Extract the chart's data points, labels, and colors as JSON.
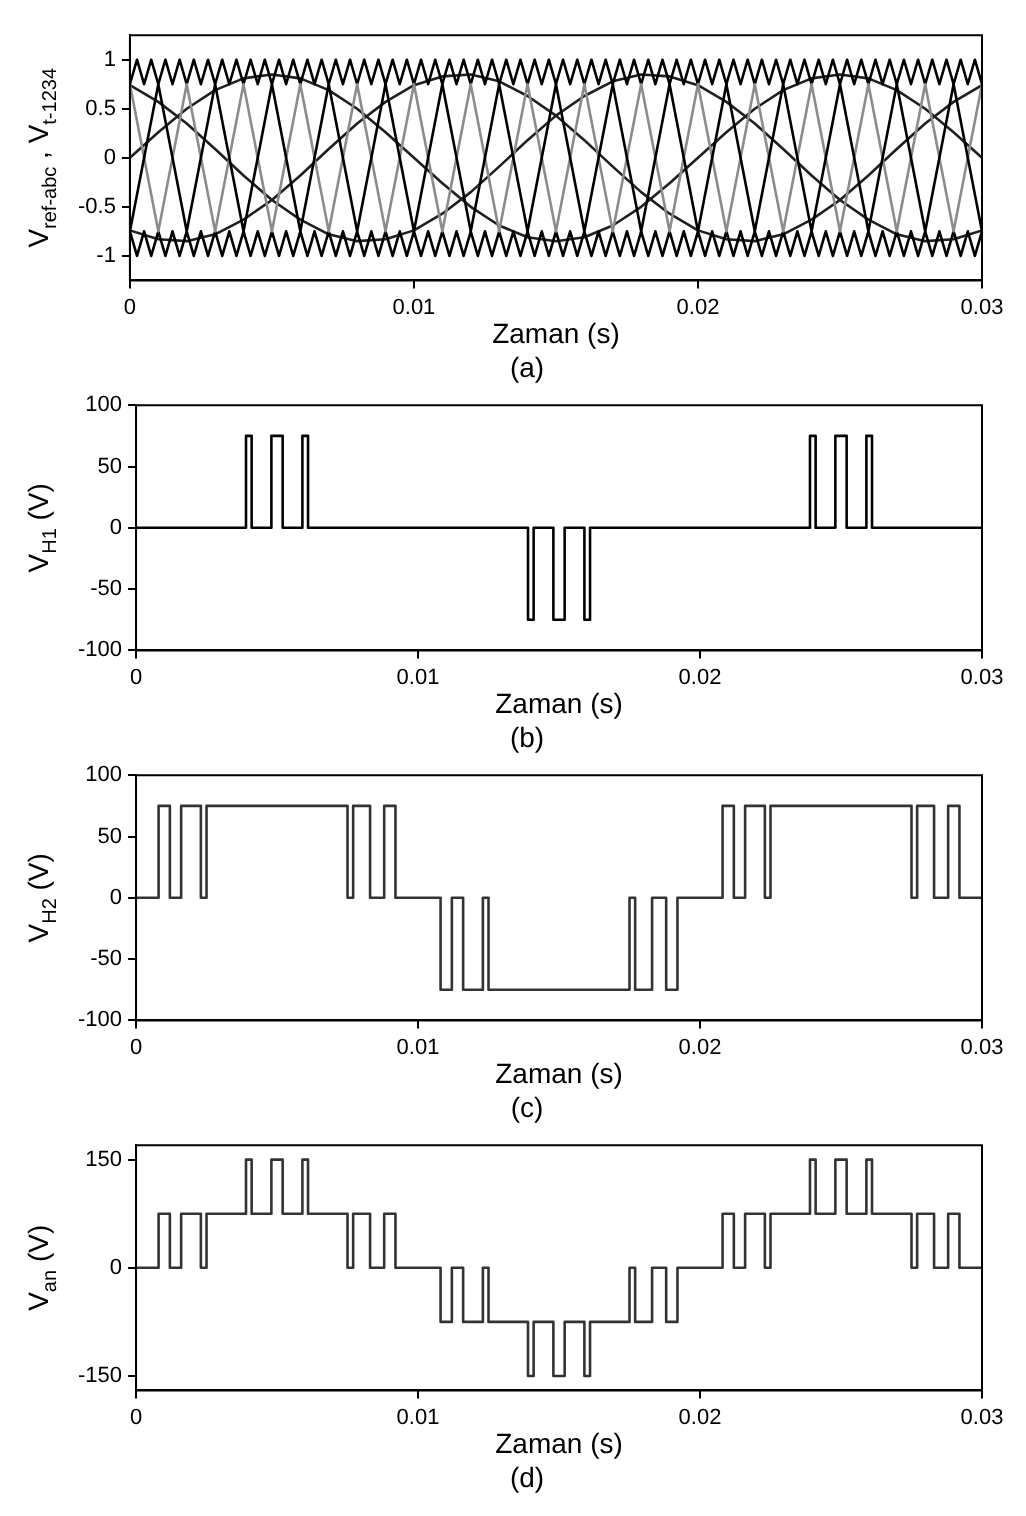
{
  "chart_data": [
    {
      "type": "line",
      "title": "(a)",
      "xlabel": "Zaman (s)",
      "ylabel": "V$_{ref-abc}$ , V$_{t-1234}$",
      "xlim": [
        0,
        0.03
      ],
      "xticks": [
        0,
        0.01,
        0.02,
        0.03
      ],
      "ylim": [
        -1.25,
        1.25
      ],
      "yticks": [
        -1,
        -0.5,
        0,
        0.5,
        1
      ],
      "x": [
        0,
        0.001,
        0.002,
        0.003,
        0.004,
        0.005,
        0.006,
        0.007,
        0.008,
        0.009,
        0.01,
        0.011,
        0.012,
        0.013,
        0.014,
        0.015,
        0.016,
        0.017,
        0.018,
        0.019,
        0.02,
        0.021,
        0.022,
        0.023,
        0.024,
        0.025,
        0.026,
        0.027,
        0.028,
        0.029,
        0.03
      ],
      "series": [
        {
          "color": "#000000",
          "values": [
            -0.75,
            0.75,
            -0.75,
            0.75,
            -0.75,
            0.75,
            -0.75,
            0.75,
            -0.75,
            0.75,
            -0.75,
            0.75,
            -0.75,
            0.75,
            -0.75,
            0.75,
            -0.75,
            0.75,
            -0.75,
            0.75,
            -0.75,
            0.75,
            -0.75,
            0.75,
            -0.75,
            0.75,
            -0.75,
            0.75,
            -0.75,
            0.75,
            -0.75
          ]
        },
        {
          "color": "#8c8c8c",
          "values": [
            0.75,
            -0.75,
            0.75,
            -0.75,
            0.75,
            -0.75,
            0.75,
            -0.75,
            0.75,
            -0.75,
            0.75,
            -0.75,
            0.75,
            -0.75,
            0.75,
            -0.75,
            0.75,
            -0.75,
            0.75,
            -0.75,
            0.75,
            -0.75,
            0.75,
            -0.75,
            0.75,
            -0.75,
            0.75,
            -0.75,
            0.75,
            -0.75,
            0.75
          ]
        },
        {
          "color": "#000000",
          "x": [
            0,
            0.00025,
            0.0005,
            0.00075,
            0.001,
            0.00125,
            0.0015,
            0.00175,
            0.002,
            0.00225,
            0.0025,
            0.00275,
            0.003,
            0.00325,
            0.0035,
            0.00375,
            0.004,
            0.00425,
            0.0045,
            0.00475,
            0.005,
            0.00525,
            0.0055,
            0.00575,
            0.006,
            0.00625,
            0.0065,
            0.00675,
            0.007,
            0.00725,
            0.0075,
            0.00775,
            0.008,
            0.00825,
            0.0085,
            0.00875,
            0.009,
            0.00925,
            0.0095,
            0.00975,
            0.01,
            0.01025,
            0.0105,
            0.01075,
            0.011,
            0.01125,
            0.0115,
            0.01175,
            0.012,
            0.01225,
            0.0125,
            0.01275,
            0.013,
            0.01325,
            0.0135,
            0.01375,
            0.014,
            0.01425,
            0.0145,
            0.01475,
            0.015,
            0.01525,
            0.0155,
            0.01575,
            0.016,
            0.01625,
            0.0165,
            0.01675,
            0.017,
            0.01725,
            0.0175,
            0.01775,
            0.018,
            0.01825,
            0.0185,
            0.01875,
            0.019,
            0.01925,
            0.0195,
            0.01975,
            0.02,
            0.02025,
            0.0205,
            0.02075,
            0.021,
            0.02125,
            0.0215,
            0.02175,
            0.022,
            0.02225,
            0.0225,
            0.02275,
            0.023,
            0.02325,
            0.0235,
            0.02375,
            0.024,
            0.02425,
            0.0245,
            0.02475,
            0.025,
            0.02525,
            0.0255,
            0.02575,
            0.026,
            0.02625,
            0.0265,
            0.02675,
            0.027,
            0.02725,
            0.0275,
            0.02775,
            0.028,
            0.02825,
            0.0285,
            0.02875,
            0.029,
            0.02925,
            0.0295,
            0.02975,
            0.03
          ],
          "values": [
            0.75,
            1,
            0.75,
            1,
            0.75,
            1,
            0.75,
            1,
            0.75,
            1,
            0.75,
            1,
            0.75,
            1,
            0.75,
            1,
            0.75,
            1,
            0.75,
            1,
            0.75,
            1,
            0.75,
            1,
            0.75,
            1,
            0.75,
            1,
            0.75,
            1,
            0.75,
            1,
            0.75,
            1,
            0.75,
            1,
            0.75,
            1,
            0.75,
            1,
            0.75,
            1,
            0.75,
            1,
            0.75,
            1,
            0.75,
            1,
            0.75,
            1,
            0.75,
            1,
            0.75,
            1,
            0.75,
            1,
            0.75,
            1,
            0.75,
            1,
            0.75,
            1,
            0.75,
            1,
            0.75,
            1,
            0.75,
            1,
            0.75,
            1,
            0.75,
            1,
            0.75,
            1,
            0.75,
            1,
            0.75,
            1,
            0.75,
            1,
            0.75,
            1,
            0.75,
            1,
            0.75,
            1,
            0.75,
            1,
            0.75,
            1,
            0.75,
            1,
            0.75,
            1,
            0.75,
            1,
            0.75,
            1,
            0.75,
            1,
            0.75,
            1,
            0.75,
            1,
            0.75,
            1,
            0.75,
            1,
            0.75,
            1,
            0.75,
            1,
            0.75,
            1,
            0.75,
            1,
            0.75,
            1,
            0.75,
            1,
            0.75
          ]
        },
        {
          "color": "#000000",
          "x": [
            0,
            0.00025,
            0.0005,
            0.00075,
            0.001,
            0.00125,
            0.0015,
            0.00175,
            0.002,
            0.00225,
            0.0025,
            0.00275,
            0.003,
            0.00325,
            0.0035,
            0.00375,
            0.004,
            0.00425,
            0.0045,
            0.00475,
            0.005,
            0.00525,
            0.0055,
            0.00575,
            0.006,
            0.00625,
            0.0065,
            0.00675,
            0.007,
            0.00725,
            0.0075,
            0.00775,
            0.008,
            0.00825,
            0.0085,
            0.00875,
            0.009,
            0.00925,
            0.0095,
            0.00975,
            0.01,
            0.01025,
            0.0105,
            0.01075,
            0.011,
            0.01125,
            0.0115,
            0.01175,
            0.012,
            0.01225,
            0.0125,
            0.01275,
            0.013,
            0.01325,
            0.0135,
            0.01375,
            0.014,
            0.01425,
            0.0145,
            0.01475,
            0.015,
            0.01525,
            0.0155,
            0.01575,
            0.016,
            0.01625,
            0.0165,
            0.01675,
            0.017,
            0.01725,
            0.0175,
            0.01775,
            0.018,
            0.01825,
            0.0185,
            0.01875,
            0.019,
            0.01925,
            0.0195,
            0.01975,
            0.02,
            0.02025,
            0.0205,
            0.02075,
            0.021,
            0.02125,
            0.0215,
            0.02175,
            0.022,
            0.02225,
            0.0225,
            0.02275,
            0.023,
            0.02325,
            0.0235,
            0.02375,
            0.024,
            0.02425,
            0.0245,
            0.02475,
            0.025,
            0.02525,
            0.0255,
            0.02575,
            0.026,
            0.02625,
            0.0265,
            0.02675,
            0.027,
            0.02725,
            0.0275,
            0.02775,
            0.028,
            0.02825,
            0.0285,
            0.02875,
            0.029,
            0.02925,
            0.0295,
            0.02975,
            0.03
          ],
          "values": [
            -0.75,
            -1,
            -0.75,
            -1,
            -0.75,
            -1,
            -0.75,
            -1,
            -0.75,
            -1,
            -0.75,
            -1,
            -0.75,
            -1,
            -0.75,
            -1,
            -0.75,
            -1,
            -0.75,
            -1,
            -0.75,
            -1,
            -0.75,
            -1,
            -0.75,
            -1,
            -0.75,
            -1,
            -0.75,
            -1,
            -0.75,
            -1,
            -0.75,
            -1,
            -0.75,
            -1,
            -0.75,
            -1,
            -0.75,
            -1,
            -0.75,
            -1,
            -0.75,
            -1,
            -0.75,
            -1,
            -0.75,
            -1,
            -0.75,
            -1,
            -0.75,
            -1,
            -0.75,
            -1,
            -0.75,
            -1,
            -0.75,
            -1,
            -0.75,
            -1,
            -0.75,
            -1,
            -0.75,
            -1,
            -0.75,
            -1,
            -0.75,
            -1,
            -0.75,
            -1,
            -0.75,
            -1,
            -0.75,
            -1,
            -0.75,
            -1,
            -0.75,
            -1,
            -0.75,
            -1,
            -0.75,
            -1,
            -0.75,
            -1,
            -0.75,
            -1,
            -0.75,
            -1,
            -0.75,
            -1,
            -0.75,
            -1,
            -0.75,
            -1,
            -0.75,
            -1,
            -0.75,
            -1,
            -0.75,
            -1,
            -0.75,
            -1,
            -0.75,
            -1,
            -0.75,
            -1,
            -0.75,
            -1,
            -0.75,
            -1,
            -0.75,
            -1,
            -0.75,
            -1,
            -0.75,
            -1,
            -0.75,
            -1,
            -0.75,
            -1,
            -0.75
          ]
        },
        {
          "color": "#202020",
          "values": [
            0,
            0.26,
            0.5,
            0.69,
            0.81,
            0.85,
            0.81,
            0.69,
            0.5,
            0.26,
            0,
            -0.26,
            -0.5,
            -0.69,
            -0.81,
            -0.85,
            -0.81,
            -0.69,
            -0.5,
            -0.26,
            0,
            0.26,
            0.5,
            0.69,
            0.81,
            0.85,
            0.81,
            0.69,
            0.5,
            0.26,
            0
          ]
        },
        {
          "color": "#202020",
          "values": [
            0.74,
            0.57,
            0.35,
            0.09,
            -0.18,
            -0.43,
            -0.63,
            -0.78,
            -0.85,
            -0.83,
            -0.74,
            -0.57,
            -0.35,
            -0.09,
            0.18,
            0.43,
            0.63,
            0.78,
            0.85,
            0.83,
            0.74,
            0.57,
            0.35,
            0.09,
            -0.18,
            -0.43,
            -0.63,
            -0.78,
            -0.85,
            -0.83,
            -0.74
          ]
        },
        {
          "color": "#202020",
          "values": [
            -0.74,
            -0.83,
            -0.85,
            -0.78,
            -0.63,
            -0.43,
            -0.18,
            0.09,
            0.35,
            0.57,
            0.74,
            0.83,
            0.85,
            0.78,
            0.63,
            0.43,
            0.18,
            -0.09,
            -0.35,
            -0.57,
            -0.74,
            -0.83,
            -0.85,
            -0.78,
            -0.63,
            -0.43,
            -0.18,
            0.09,
            0.35,
            0.57,
            0.74
          ]
        }
      ]
    },
    {
      "type": "step",
      "title": "(b)",
      "xlabel": "Zaman (s)",
      "ylabel": "V$_{H1}$ (V)",
      "xlim": [
        0,
        0.03
      ],
      "xticks": [
        0,
        0.01,
        0.02,
        0.03
      ],
      "ylim": [
        -100,
        100
      ],
      "yticks": [
        -100,
        -50,
        0,
        50,
        100
      ],
      "x": [
        0,
        0.0039,
        0.0041,
        0.0048,
        0.0052,
        0.0059,
        0.0061,
        0.0139,
        0.0141,
        0.0148,
        0.0152,
        0.0159,
        0.0161,
        0.0239,
        0.0241,
        0.0248,
        0.0252,
        0.0259,
        0.0261,
        0.03
      ],
      "series": [
        {
          "color": "#000000",
          "values": [
            0,
            75,
            0,
            75,
            0,
            75,
            0,
            -75,
            0,
            -75,
            0,
            -75,
            0,
            75,
            0,
            75,
            0,
            75,
            0,
            0
          ]
        }
      ]
    },
    {
      "type": "step",
      "title": "(c)",
      "xlabel": "Zaman (s)",
      "ylabel": "V$_{H2}$ (V)",
      "xlim": [
        0,
        0.03
      ],
      "xticks": [
        0,
        0.01,
        0.02,
        0.03
      ],
      "ylim": [
        -100,
        100
      ],
      "yticks": [
        -100,
        -50,
        0,
        50,
        100
      ],
      "x": [
        0,
        0.0008,
        0.0012,
        0.0016,
        0.0023,
        0.0025,
        0.0075,
        0.0077,
        0.0083,
        0.0088,
        0.0092,
        0.0108,
        0.0112,
        0.0116,
        0.0123,
        0.0125,
        0.0175,
        0.0177,
        0.0183,
        0.0188,
        0.0192,
        0.0208,
        0.0212,
        0.0216,
        0.0223,
        0.0225,
        0.0275,
        0.0277,
        0.0283,
        0.0288,
        0.0292,
        0.03
      ],
      "series": [
        {
          "color": "#333333",
          "values": [
            0,
            75,
            0,
            75,
            0,
            75,
            0,
            75,
            0,
            75,
            0,
            -75,
            0,
            -75,
            0,
            -75,
            0,
            -75,
            0,
            -75,
            0,
            75,
            0,
            75,
            0,
            75,
            0,
            75,
            0,
            75,
            0,
            0
          ]
        }
      ]
    },
    {
      "type": "step",
      "title": "(d)",
      "xlabel": "Zaman (s)",
      "ylabel": "V$_{an}$ (V)",
      "xlim": [
        0,
        0.03
      ],
      "xticks": [
        0,
        0.01,
        0.02,
        0.03
      ],
      "ylim": [
        -170,
        170
      ],
      "yticks": [
        -150,
        0,
        150
      ],
      "x": [
        0,
        0.0008,
        0.0012,
        0.0016,
        0.0023,
        0.0025,
        0.0039,
        0.0041,
        0.0048,
        0.0052,
        0.0059,
        0.0061,
        0.0075,
        0.0077,
        0.0083,
        0.0088,
        0.0092,
        0.0108,
        0.0112,
        0.0116,
        0.0123,
        0.0125,
        0.0139,
        0.0141,
        0.0148,
        0.0152,
        0.0159,
        0.0161,
        0.0175,
        0.0177,
        0.0183,
        0.0188,
        0.0192,
        0.0208,
        0.0212,
        0.0216,
        0.0223,
        0.0225,
        0.0239,
        0.0241,
        0.0248,
        0.0252,
        0.0259,
        0.0261,
        0.0275,
        0.0277,
        0.0283,
        0.0288,
        0.0292,
        0.03
      ],
      "series": [
        {
          "color": "#333333",
          "values": [
            0,
            75,
            0,
            75,
            0,
            75,
            150,
            75,
            150,
            75,
            150,
            75,
            0,
            75,
            0,
            75,
            0,
            -75,
            0,
            -75,
            0,
            -75,
            -150,
            -75,
            -150,
            -75,
            -150,
            -75,
            0,
            -75,
            0,
            -75,
            0,
            75,
            0,
            75,
            0,
            75,
            150,
            75,
            150,
            75,
            150,
            75,
            0,
            75,
            0,
            75,
            0,
            0
          ]
        }
      ]
    }
  ]
}
